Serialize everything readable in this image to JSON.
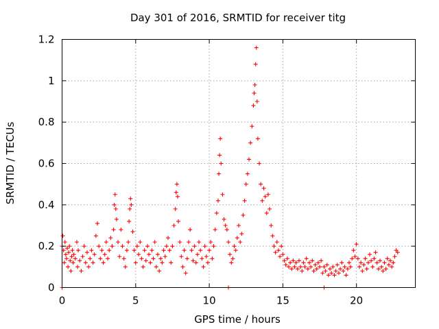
{
  "chart_data": {
    "type": "scatter",
    "title": "Day 301 of 2016, SRMTID for receiver titg",
    "xlabel": "GPS time / hours",
    "ylabel": "SRMTID / TECUs",
    "xlim": [
      0,
      24
    ],
    "ylim": [
      0,
      1.2
    ],
    "x_ticks": [
      0,
      5,
      10,
      15,
      20
    ],
    "x_tick_labels": [
      "0",
      "5",
      "10",
      "15",
      "20"
    ],
    "y_ticks": [
      0,
      0.2,
      0.4,
      0.6,
      0.8,
      1.0,
      1.2
    ],
    "y_tick_labels": [
      "0",
      "0.2",
      "0.4",
      "0.6",
      "0.8",
      "1",
      "1.2"
    ],
    "grid": true,
    "marker": "plus",
    "color": "#ff0000",
    "series": [
      {
        "name": "SRMTID",
        "points": [
          [
            0.0,
            0.2
          ],
          [
            0.05,
            0.25
          ],
          [
            0.1,
            0.18
          ],
          [
            0.15,
            0.12
          ],
          [
            0.2,
            0.22
          ],
          [
            0.25,
            0.16
          ],
          [
            0.3,
            0.14
          ],
          [
            0.35,
            0.19
          ],
          [
            0.4,
            0.1
          ],
          [
            0.45,
            0.17
          ],
          [
            0.5,
            0.2
          ],
          [
            0.55,
            0.13
          ],
          [
            0.6,
            0.08
          ],
          [
            0.65,
            0.15
          ],
          [
            0.7,
            0.18
          ],
          [
            0.75,
            0.12
          ],
          [
            0.8,
            0.16
          ],
          [
            0.9,
            0.14
          ],
          [
            1.0,
            0.22
          ],
          [
            1.05,
            0.1
          ],
          [
            1.1,
            0.18
          ],
          [
            1.2,
            0.13
          ],
          [
            1.3,
            0.08
          ],
          [
            1.4,
            0.15
          ],
          [
            1.5,
            0.2
          ],
          [
            1.6,
            0.12
          ],
          [
            1.7,
            0.17
          ],
          [
            1.8,
            0.1
          ],
          [
            1.9,
            0.14
          ],
          [
            2.0,
            0.18
          ],
          [
            2.1,
            0.12
          ],
          [
            2.2,
            0.16
          ],
          [
            2.3,
            0.25
          ],
          [
            2.4,
            0.31
          ],
          [
            2.5,
            0.2
          ],
          [
            2.6,
            0.14
          ],
          [
            2.7,
            0.18
          ],
          [
            2.8,
            0.12
          ],
          [
            2.9,
            0.16
          ],
          [
            3.0,
            0.22
          ],
          [
            3.1,
            0.14
          ],
          [
            3.2,
            0.18
          ],
          [
            3.3,
            0.24
          ],
          [
            3.4,
            0.2
          ],
          [
            3.5,
            0.28
          ],
          [
            3.55,
            0.4
          ],
          [
            3.6,
            0.45
          ],
          [
            3.65,
            0.38
          ],
          [
            3.7,
            0.33
          ],
          [
            3.8,
            0.22
          ],
          [
            3.9,
            0.15
          ],
          [
            4.0,
            0.28
          ],
          [
            4.1,
            0.2
          ],
          [
            4.2,
            0.14
          ],
          [
            4.3,
            0.1
          ],
          [
            4.4,
            0.18
          ],
          [
            4.5,
            0.22
          ],
          [
            4.55,
            0.32
          ],
          [
            4.6,
            0.38
          ],
          [
            4.65,
            0.43
          ],
          [
            4.7,
            0.4
          ],
          [
            4.8,
            0.27
          ],
          [
            4.9,
            0.18
          ],
          [
            5.0,
            0.12
          ],
          [
            5.1,
            0.2
          ],
          [
            5.2,
            0.16
          ],
          [
            5.3,
            0.22
          ],
          [
            5.4,
            0.14
          ],
          [
            5.5,
            0.1
          ],
          [
            5.6,
            0.18
          ],
          [
            5.7,
            0.13
          ],
          [
            5.8,
            0.2
          ],
          [
            5.9,
            0.16
          ],
          [
            6.0,
            0.12
          ],
          [
            6.1,
            0.18
          ],
          [
            6.2,
            0.14
          ],
          [
            6.3,
            0.22
          ],
          [
            6.4,
            0.1
          ],
          [
            6.5,
            0.16
          ],
          [
            6.6,
            0.08
          ],
          [
            6.7,
            0.14
          ],
          [
            6.8,
            0.12
          ],
          [
            6.9,
            0.18
          ],
          [
            7.0,
            0.15
          ],
          [
            7.1,
            0.2
          ],
          [
            7.2,
            0.24
          ],
          [
            7.3,
            0.18
          ],
          [
            7.4,
            0.12
          ],
          [
            7.5,
            0.2
          ],
          [
            7.6,
            0.3
          ],
          [
            7.7,
            0.38
          ],
          [
            7.75,
            0.46
          ],
          [
            7.8,
            0.5
          ],
          [
            7.85,
            0.44
          ],
          [
            7.9,
            0.32
          ],
          [
            8.0,
            0.22
          ],
          [
            8.1,
            0.15
          ],
          [
            8.2,
            0.1
          ],
          [
            8.3,
            0.18
          ],
          [
            8.4,
            0.07
          ],
          [
            8.5,
            0.14
          ],
          [
            8.6,
            0.22
          ],
          [
            8.7,
            0.28
          ],
          [
            8.8,
            0.18
          ],
          [
            8.9,
            0.13
          ],
          [
            9.0,
            0.2
          ],
          [
            9.1,
            0.12
          ],
          [
            9.2,
            0.16
          ],
          [
            9.3,
            0.22
          ],
          [
            9.4,
            0.18
          ],
          [
            9.5,
            0.14
          ],
          [
            9.6,
            0.1
          ],
          [
            9.7,
            0.2
          ],
          [
            9.8,
            0.15
          ],
          [
            9.9,
            0.12
          ],
          [
            10.0,
            0.18
          ],
          [
            10.1,
            0.22
          ],
          [
            10.2,
            0.14
          ],
          [
            10.3,
            0.2
          ],
          [
            10.4,
            0.28
          ],
          [
            10.5,
            0.36
          ],
          [
            10.6,
            0.42
          ],
          [
            10.65,
            0.55
          ],
          [
            10.7,
            0.64
          ],
          [
            10.75,
            0.72
          ],
          [
            10.8,
            0.6
          ],
          [
            10.9,
            0.45
          ],
          [
            11.0,
            0.33
          ],
          [
            11.1,
            0.3
          ],
          [
            11.2,
            0.28
          ],
          [
            11.3,
            0.22
          ],
          [
            11.4,
            0.16
          ],
          [
            11.5,
            0.12
          ],
          [
            11.6,
            0.14
          ],
          [
            11.7,
            0.2
          ],
          [
            11.8,
            0.18
          ],
          [
            11.9,
            0.24
          ],
          [
            12.0,
            0.3
          ],
          [
            12.1,
            0.22
          ],
          [
            12.2,
            0.26
          ],
          [
            12.3,
            0.35
          ],
          [
            12.4,
            0.42
          ],
          [
            12.5,
            0.5
          ],
          [
            12.6,
            0.55
          ],
          [
            12.7,
            0.62
          ],
          [
            12.8,
            0.7
          ],
          [
            12.9,
            0.78
          ],
          [
            13.0,
            0.88
          ],
          [
            13.05,
            0.94
          ],
          [
            13.1,
            0.98
          ],
          [
            13.15,
            1.08
          ],
          [
            13.2,
            1.16
          ],
          [
            13.25,
            0.9
          ],
          [
            13.3,
            0.72
          ],
          [
            13.4,
            0.6
          ],
          [
            13.5,
            0.5
          ],
          [
            13.6,
            0.42
          ],
          [
            13.7,
            0.48
          ],
          [
            13.8,
            0.44
          ],
          [
            13.9,
            0.36
          ],
          [
            14.0,
            0.45
          ],
          [
            14.1,
            0.38
          ],
          [
            14.2,
            0.3
          ],
          [
            14.3,
            0.25
          ],
          [
            14.4,
            0.2
          ],
          [
            14.5,
            0.17
          ],
          [
            14.6,
            0.22
          ],
          [
            14.7,
            0.18
          ],
          [
            14.8,
            0.15
          ],
          [
            14.9,
            0.2
          ],
          [
            15.0,
            0.16
          ],
          [
            15.1,
            0.13
          ],
          [
            15.2,
            0.11
          ],
          [
            15.3,
            0.14
          ],
          [
            15.4,
            0.1
          ],
          [
            15.5,
            0.12
          ],
          [
            15.6,
            0.09
          ],
          [
            15.7,
            0.13
          ],
          [
            15.8,
            0.1
          ],
          [
            15.9,
            0.12
          ],
          [
            16.0,
            0.09
          ],
          [
            16.1,
            0.13
          ],
          [
            16.2,
            0.1
          ],
          [
            16.3,
            0.08
          ],
          [
            16.4,
            0.12
          ],
          [
            16.5,
            0.1
          ],
          [
            16.6,
            0.14
          ],
          [
            16.7,
            0.09
          ],
          [
            16.8,
            0.12
          ],
          [
            16.9,
            0.1
          ],
          [
            17.0,
            0.13
          ],
          [
            17.1,
            0.08
          ],
          [
            17.2,
            0.11
          ],
          [
            17.3,
            0.09
          ],
          [
            17.4,
            0.12
          ],
          [
            17.5,
            0.1
          ],
          [
            17.6,
            0.13
          ],
          [
            17.7,
            0.07
          ],
          [
            17.8,
            0.1
          ],
          [
            17.9,
            0.08
          ],
          [
            18.0,
            0.11
          ],
          [
            18.1,
            0.06
          ],
          [
            18.2,
            0.09
          ],
          [
            18.3,
            0.07
          ],
          [
            18.4,
            0.1
          ],
          [
            18.5,
            0.06
          ],
          [
            18.6,
            0.08
          ],
          [
            18.7,
            0.11
          ],
          [
            18.8,
            0.07
          ],
          [
            18.9,
            0.09
          ],
          [
            19.0,
            0.12
          ],
          [
            19.1,
            0.08
          ],
          [
            19.2,
            0.1
          ],
          [
            19.3,
            0.06
          ],
          [
            19.4,
            0.09
          ],
          [
            19.5,
            0.12
          ],
          [
            19.6,
            0.1
          ],
          [
            19.7,
            0.14
          ],
          [
            19.8,
            0.18
          ],
          [
            19.9,
            0.15
          ],
          [
            20.0,
            0.21
          ],
          [
            20.1,
            0.14
          ],
          [
            20.2,
            0.1
          ],
          [
            20.3,
            0.12
          ],
          [
            20.4,
            0.08
          ],
          [
            20.5,
            0.11
          ],
          [
            20.6,
            0.14
          ],
          [
            20.7,
            0.09
          ],
          [
            20.8,
            0.12
          ],
          [
            20.9,
            0.16
          ],
          [
            21.0,
            0.13
          ],
          [
            21.1,
            0.1
          ],
          [
            21.2,
            0.14
          ],
          [
            21.3,
            0.17
          ],
          [
            21.4,
            0.12
          ],
          [
            21.5,
            0.09
          ],
          [
            21.6,
            0.13
          ],
          [
            21.7,
            0.1
          ],
          [
            21.8,
            0.08
          ],
          [
            21.9,
            0.12
          ],
          [
            22.0,
            0.09
          ],
          [
            22.1,
            0.14
          ],
          [
            22.2,
            0.11
          ],
          [
            22.3,
            0.13
          ],
          [
            22.4,
            0.1
          ],
          [
            22.5,
            0.12
          ],
          [
            22.6,
            0.15
          ],
          [
            22.7,
            0.18
          ],
          [
            22.8,
            0.17
          ],
          [
            11.3,
            0.0
          ],
          [
            17.8,
            0.0
          ],
          [
            0.0,
            0.0
          ]
        ]
      }
    ]
  }
}
